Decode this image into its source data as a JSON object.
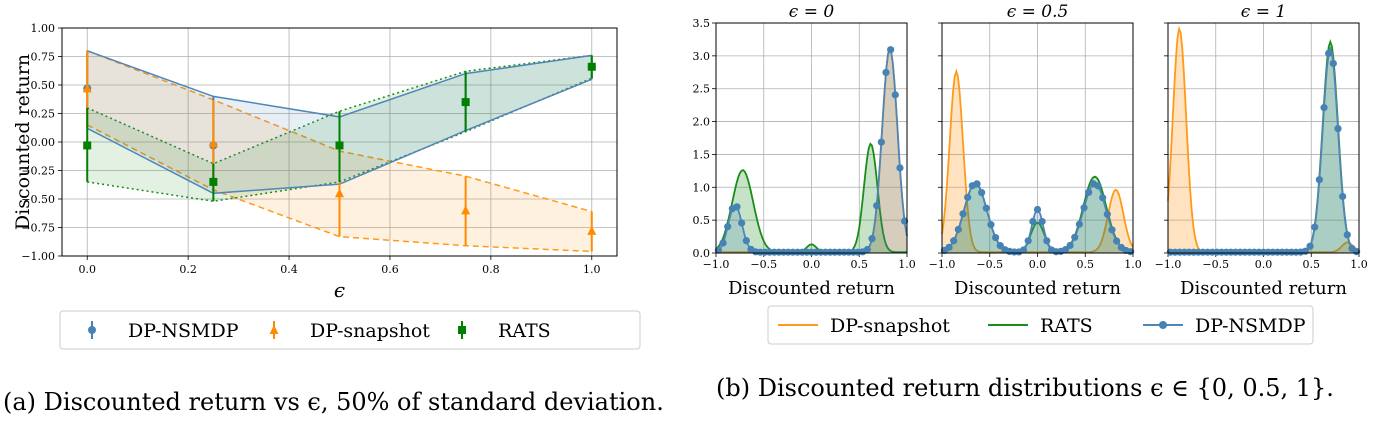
{
  "colors": {
    "nsmdp": "#4682b4",
    "snapshot": "#ff8c00",
    "rats": "#008000",
    "nsmdp_line": "#4f86b8",
    "snapshot_line": "#ff9a1a",
    "rats_line": "#1a8c1a",
    "grid": "#b0b0b0"
  },
  "captions": {
    "a": "(a) Discounted return vs ϵ, 50% of standard deviation.",
    "b": "(b) Discounted return distributions ϵ ∈ {0, 0.5, 1}."
  },
  "legend_a": [
    "DP-NSMDP",
    "DP-snapshot",
    "RATS"
  ],
  "legend_b": [
    "DP-snapshot",
    "RATS",
    "DP-NSMDP"
  ],
  "chart_data": [
    {
      "type": "line",
      "xlabel": "ϵ",
      "ylabel": "Discounted return",
      "xlim": [
        -0.05,
        1.05
      ],
      "ylim": [
        -1.0,
        1.0
      ],
      "xticks": [
        "0.0",
        "0.2",
        "0.4",
        "0.6",
        "0.8",
        "1.0"
      ],
      "yticks": [
        "−1.00",
        "−0.75",
        "−0.50",
        "−0.25",
        "0.00",
        "0.25",
        "0.50",
        "0.75",
        "1.00"
      ],
      "grid": true,
      "legend_position": "bottom",
      "series": [
        {
          "name": "DP-NSMDP",
          "marker": "circle",
          "x": [
            0,
            0.25,
            0.5,
            0.75,
            1.0
          ],
          "values": [
            0.47,
            -0.03,
            -0.03,
            0.35,
            0.66
          ],
          "upper": [
            0.8,
            0.4,
            0.22,
            0.6,
            0.76
          ],
          "lower": [
            0.12,
            -0.45,
            -0.37,
            0.1,
            0.55
          ]
        },
        {
          "name": "DP-snapshot",
          "marker": "triangle",
          "x": [
            0,
            0.25,
            0.5,
            0.75,
            1.0
          ],
          "values": [
            0.47,
            -0.01,
            -0.45,
            -0.6,
            -0.78
          ],
          "upper": [
            0.8,
            0.37,
            -0.08,
            -0.3,
            -0.61
          ],
          "lower": [
            0.15,
            -0.42,
            -0.83,
            -0.91,
            -0.96
          ]
        },
        {
          "name": "RATS",
          "marker": "square",
          "x": [
            0,
            0.25,
            0.5,
            0.75,
            1.0
          ],
          "values": [
            -0.03,
            -0.35,
            -0.03,
            0.35,
            0.66
          ],
          "upper": [
            0.3,
            -0.19,
            0.27,
            0.62,
            0.76
          ],
          "lower": [
            -0.35,
            -0.52,
            -0.35,
            0.09,
            0.56
          ]
        }
      ]
    },
    {
      "type": "area",
      "title": "ϵ = 0",
      "xlabel": "Discounted return",
      "xlim": [
        -1.0,
        1.0
      ],
      "ylim": [
        0,
        3.5
      ],
      "xticks": [
        "−1.0",
        "−0.5",
        "0.0",
        "0.5",
        "1.0"
      ],
      "yticks": [
        "0.0",
        "0.5",
        "1.0",
        "1.5",
        "2.0",
        "2.5",
        "3.0",
        "3.5"
      ],
      "series": [
        {
          "name": "DP-snapshot",
          "peaks": [
            [
              0.82,
              3.1,
              0.08
            ]
          ]
        },
        {
          "name": "RATS",
          "peaks": [
            [
              -0.72,
              1.25,
              0.11
            ],
            [
              0.0,
              0.12,
              0.05
            ],
            [
              0.62,
              1.65,
              0.07
            ]
          ]
        },
        {
          "name": "DP-NSMDP",
          "peaks": [
            [
              -0.8,
              0.72,
              0.07
            ],
            [
              0.82,
              3.1,
              0.08
            ]
          ]
        }
      ]
    },
    {
      "type": "area",
      "title": "ϵ = 0.5",
      "xlabel": "Discounted return",
      "xlim": [
        -1.0,
        1.0
      ],
      "ylim": [
        0,
        3.5
      ],
      "xticks": [
        "−1.0",
        "−0.5",
        "0.0",
        "0.5",
        "1.0"
      ],
      "series": [
        {
          "name": "DP-snapshot",
          "peaks": [
            [
              -0.85,
              2.75,
              0.07
            ],
            [
              0.82,
              0.95,
              0.08
            ]
          ]
        },
        {
          "name": "RATS",
          "peaks": [
            [
              -0.65,
              1.05,
              0.12
            ],
            [
              0.0,
              0.45,
              0.07
            ],
            [
              0.6,
              1.15,
              0.12
            ]
          ]
        },
        {
          "name": "DP-NSMDP",
          "peaks": [
            [
              -0.65,
              1.05,
              0.12
            ],
            [
              0.0,
              0.65,
              0.06
            ],
            [
              0.6,
              1.05,
              0.12
            ]
          ]
        }
      ]
    },
    {
      "type": "area",
      "title": "ϵ = 1",
      "xlabel": "Discounted return",
      "xlim": [
        -1.0,
        1.0
      ],
      "ylim": [
        0,
        3.5
      ],
      "xticks": [
        "−1.0",
        "−0.5",
        "0.0",
        "0.5",
        "1.0"
      ],
      "series": [
        {
          "name": "DP-snapshot",
          "peaks": [
            [
              -0.88,
              3.4,
              0.07
            ],
            [
              0.88,
              0.15,
              0.06
            ]
          ]
        },
        {
          "name": "RATS",
          "peaks": [
            [
              0.7,
              3.2,
              0.08
            ]
          ]
        },
        {
          "name": "DP-NSMDP",
          "peaks": [
            [
              0.7,
              3.1,
              0.08
            ]
          ]
        }
      ]
    }
  ]
}
